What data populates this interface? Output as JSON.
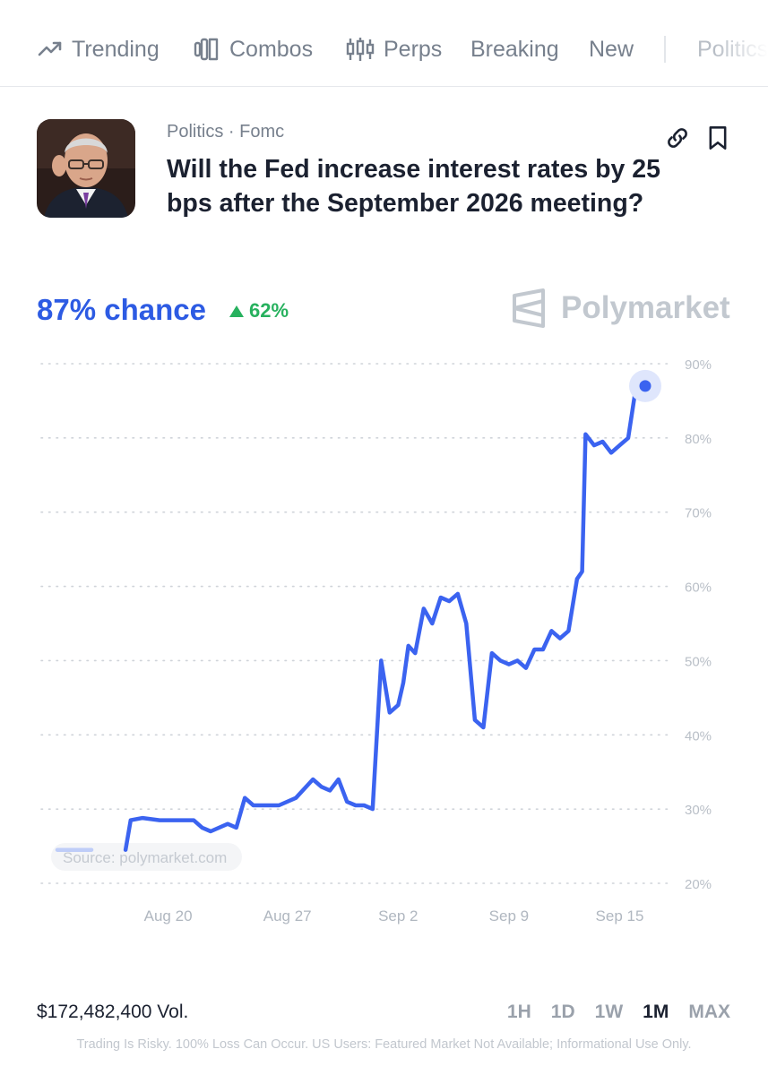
{
  "nav": {
    "items": [
      {
        "label": "Trending",
        "icon": "trending-up-icon"
      },
      {
        "label": "Combos",
        "icon": "combos-icon"
      },
      {
        "label": "Perps",
        "icon": "candlestick-icon"
      },
      {
        "label": "Breaking",
        "icon": ""
      },
      {
        "label": "New",
        "icon": ""
      }
    ],
    "overflow_label": "Politics"
  },
  "market": {
    "category": "Politics · Fomc",
    "title": "Will the Fed increase interest rates by 25 bps after the September 2026 meeting?",
    "chance": "87% chance",
    "change": "62%",
    "change_direction": "up",
    "brand": "Polymarket"
  },
  "chart_data": {
    "type": "line",
    "series": [
      {
        "color": "#3b63f0",
        "x": [
          0,
          2,
          4,
          4.3,
          5,
          6,
          7,
          8,
          8.5,
          9,
          10,
          10.5,
          11,
          11.5,
          12,
          13,
          14,
          15,
          15.5,
          16,
          16.5,
          17,
          17.5,
          18,
          18.5,
          19,
          19.5,
          20,
          20.3,
          20.6,
          21,
          21.5,
          22,
          22.5,
          23,
          23.5,
          24,
          24.5,
          25,
          25.5,
          26,
          26.5,
          27,
          27.5,
          28,
          28.5,
          29,
          29.5,
          30,
          30.5,
          30.8,
          31,
          31.5,
          32,
          32.5,
          33
        ],
        "y": [
          24.5,
          24.5,
          24.5,
          28.5,
          28.8,
          28.5,
          28.5,
          28.5,
          27.5,
          27,
          28,
          27.5,
          31.5,
          30.5,
          30.5,
          30.5,
          31.5,
          34,
          33,
          32.5,
          34,
          31,
          30.5,
          30.5,
          30,
          50,
          43,
          44,
          47,
          52,
          51,
          57,
          55,
          58.5,
          58,
          59,
          55,
          42,
          41,
          51,
          50,
          49.5,
          50,
          49,
          51.5,
          51.5,
          54,
          53,
          54,
          61,
          62,
          80.5,
          79,
          79.5,
          78,
          79
        ],
        "extra": [
          [
            33.5,
            80
          ],
          [
            34,
            87.5
          ],
          [
            34.5,
            87
          ]
        ]
      }
    ],
    "y_ticks": [
      "90%",
      "80%",
      "70%",
      "60%",
      "50%",
      "40%",
      "30%",
      "20%"
    ],
    "x_ticks": [
      "Aug 20",
      "Aug 27",
      "Sep 2",
      "Sep 9",
      "Sep 15"
    ],
    "ylim": [
      20,
      90
    ],
    "source_label": "Source: polymarket.com",
    "grid": true
  },
  "footer": {
    "volume": "$172,482,400 Vol.",
    "ranges": [
      {
        "label": "1H",
        "active": false
      },
      {
        "label": "1D",
        "active": false
      },
      {
        "label": "1W",
        "active": false
      },
      {
        "label": "1M",
        "active": true
      },
      {
        "label": "MAX",
        "active": false
      }
    ],
    "disclaimer": "Trading Is Risky. 100% Loss Can Occur. US Users: Featured Market Not Available; Informational Use Only."
  }
}
